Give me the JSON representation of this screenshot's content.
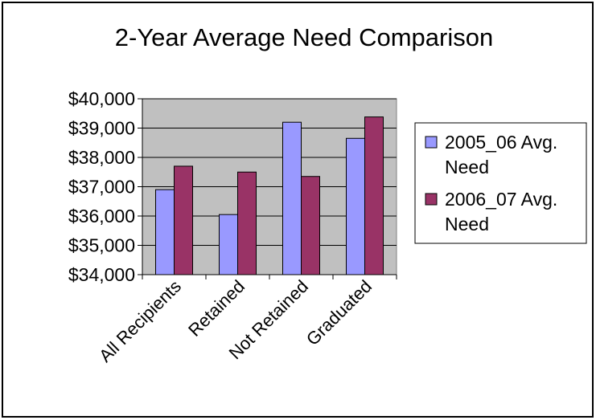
{
  "chart_data": {
    "type": "bar",
    "title": "2-Year Average Need Comparison",
    "xlabel": "",
    "ylabel": "",
    "categories": [
      "All Recipients",
      "Retained",
      "Not Retained",
      "Graduated"
    ],
    "series": [
      {
        "name": "2005_06 Avg. Need",
        "values": [
          36900,
          36050,
          39200,
          38650
        ],
        "color": "#9999ff"
      },
      {
        "name": "2006_07 Avg. Need",
        "values": [
          37700,
          37500,
          37350,
          39380
        ],
        "color": "#993366"
      }
    ],
    "ylim": [
      34000,
      40000
    ],
    "yticks": [
      34000,
      35000,
      36000,
      37000,
      38000,
      39000,
      40000
    ],
    "ytick_labels": [
      "$34,000",
      "$35,000",
      "$36,000",
      "$37,000",
      "$38,000",
      "$39,000",
      "$40,000"
    ],
    "grid": true,
    "plot_background": "#c0c0c0",
    "legend": {
      "position": "right",
      "entries": [
        {
          "lines": [
            "2005_06 Avg.",
            "Need"
          ]
        },
        {
          "lines": [
            "2006_07 Avg.",
            "Need"
          ]
        }
      ]
    }
  }
}
